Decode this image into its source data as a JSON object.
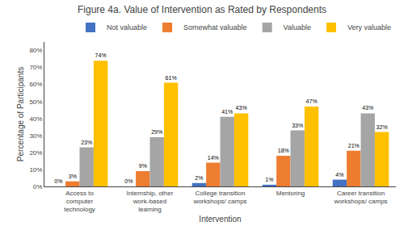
{
  "chart_data": {
    "type": "bar",
    "title": "Figure 4a. Value of Intervention as Rated by Respondents",
    "xlabel": "Intervention",
    "ylabel": "Percentage of Participants",
    "categories": [
      "Access to\ncomputer\ntechnology",
      "Internship, other\nwork-based\nlearning",
      "College transition\nworkshops/ camps",
      "Mentoring",
      "Career transition\nworkshops/ camps"
    ],
    "series": [
      {
        "name": "Not valuable",
        "color": "#4472C4",
        "values": [
          0,
          0,
          2,
          1,
          4
        ],
        "value_labels": [
          "0%",
          "0%",
          "2%",
          "1%",
          "4%"
        ]
      },
      {
        "name": "Somewhat valuable",
        "color": "#ED7D31",
        "values": [
          3,
          9,
          14,
          18,
          21
        ],
        "value_labels": [
          "3%",
          "9%",
          "14%",
          "18%",
          "21%"
        ]
      },
      {
        "name": "Valuable",
        "color": "#A5A5A5",
        "values": [
          23,
          29,
          41,
          33,
          43
        ],
        "value_labels": [
          "23%",
          "29%",
          "41%",
          "33%",
          "43%"
        ]
      },
      {
        "name": "Very valuable",
        "color": "#FFC000",
        "values": [
          74,
          61,
          43,
          47,
          32
        ],
        "value_labels": [
          "74%",
          "61%",
          "43%",
          "47%",
          "32%"
        ]
      }
    ],
    "ylim": [
      0,
      85
    ],
    "yticks": [
      {
        "value": 0,
        "label": "0%"
      },
      {
        "value": 10,
        "label": "10%"
      },
      {
        "value": 20,
        "label": "20%"
      },
      {
        "value": 30,
        "label": "30%"
      },
      {
        "value": 40,
        "label": "40%"
      },
      {
        "value": 50,
        "label": "50%"
      },
      {
        "value": 60,
        "label": "60%"
      },
      {
        "value": 70,
        "label": "70%"
      },
      {
        "value": 80,
        "label": "80%"
      }
    ],
    "grid": false,
    "legend": "upper right",
    "data_labels": true
  }
}
